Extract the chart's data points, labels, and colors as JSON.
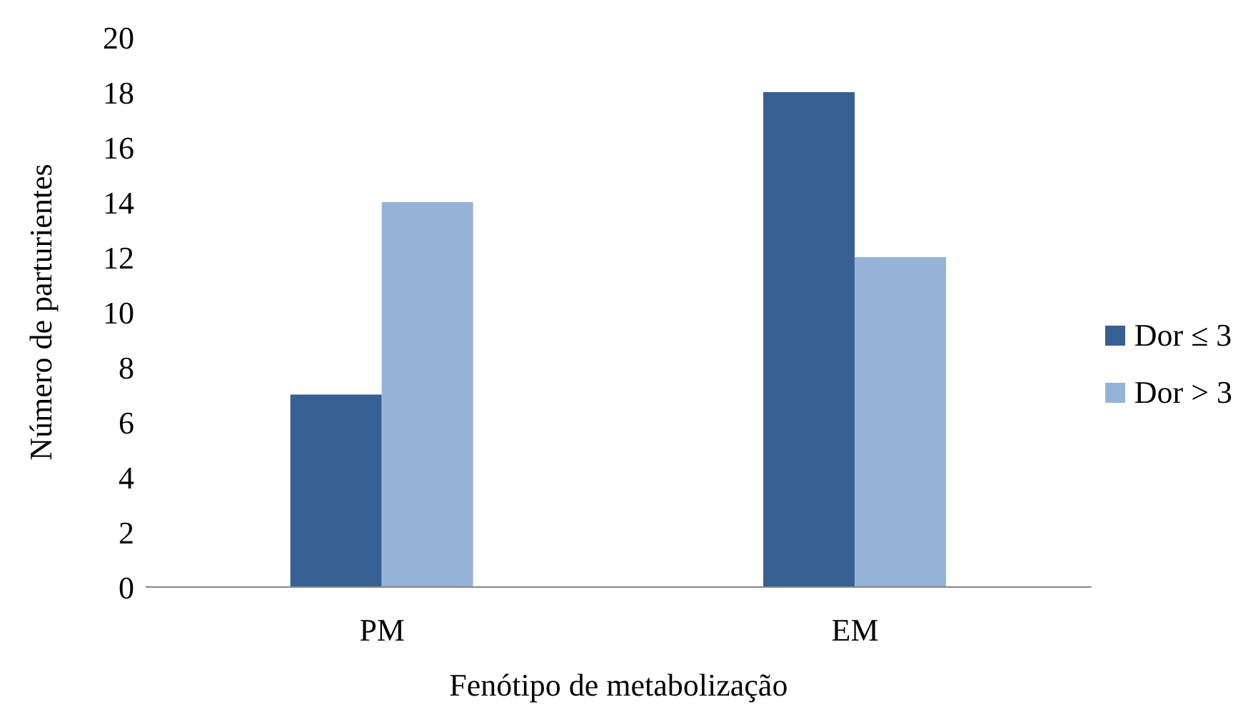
{
  "chart_data": {
    "type": "bar",
    "xlabel": "Fenótipo de metabolização",
    "ylabel": "Número de parturientes",
    "categories": [
      "PM",
      "EM"
    ],
    "series": [
      {
        "name": "Dor ≤ 3",
        "color": "#366092",
        "values": [
          7,
          18
        ]
      },
      {
        "name": "Dor > 3",
        "color": "#95b3d7",
        "values": [
          14,
          12
        ]
      }
    ],
    "ylim": [
      0,
      20
    ],
    "yticks": [
      0,
      2,
      4,
      6,
      8,
      10,
      12,
      14,
      16,
      18,
      20
    ],
    "grid": false,
    "legend": "right"
  }
}
